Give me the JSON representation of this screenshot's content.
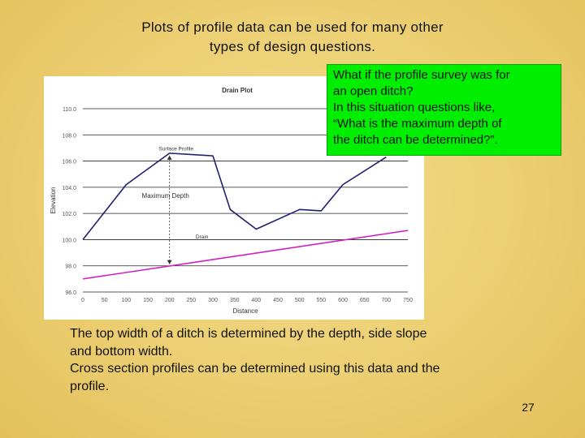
{
  "slide": {
    "title_lines": [
      "Plots of profile data can be used for many other",
      "types of design questions."
    ],
    "callout_lines": [
      "What if the profile survey was for",
      "an open ditch?",
      "In this situation questions like,",
      "“What is the maximum depth of",
      "the ditch can be determined?”."
    ],
    "body_lines": [
      "The top width of a ditch is determined by the depth, side slope",
      "and bottom width.",
      "Cross section profiles can be determined using this data and the",
      "profile."
    ],
    "page_number": "27",
    "colors": {
      "callout_bg": "#00ee00",
      "surface": "#1f1f6e",
      "drain": "#d01fc0"
    }
  },
  "chart_data": {
    "type": "line",
    "title": "Drain Plot",
    "xlabel": "Distance",
    "ylabel": "Elevation",
    "xlim": [
      0,
      750
    ],
    "ylim": [
      96.0,
      110.0
    ],
    "x_ticks": [
      "0",
      "50",
      "100",
      "150",
      "200",
      "250",
      "300",
      "350",
      "400",
      "450",
      "500",
      "550",
      "600",
      "650",
      "700",
      "750"
    ],
    "y_ticks": [
      "110.0",
      "108.0",
      "106.0",
      "104.0",
      "102.0",
      "100.0",
      "98.0",
      "96.0"
    ],
    "grid": "horizontal",
    "series": [
      {
        "name": "Surface Profile",
        "x": [
          0,
          100,
          200,
          300,
          340,
          400,
          500,
          550,
          600,
          700
        ],
        "y": [
          100.0,
          104.2,
          106.6,
          106.4,
          102.3,
          100.8,
          102.3,
          102.2,
          104.2,
          106.3
        ]
      },
      {
        "name": "Drain",
        "x": [
          0,
          750
        ],
        "y": [
          97.0,
          100.7
        ]
      }
    ],
    "annotations": [
      {
        "text": "Maximum Depth",
        "x": 200,
        "y_top": 106.6,
        "y_bottom": 98.0
      }
    ]
  }
}
